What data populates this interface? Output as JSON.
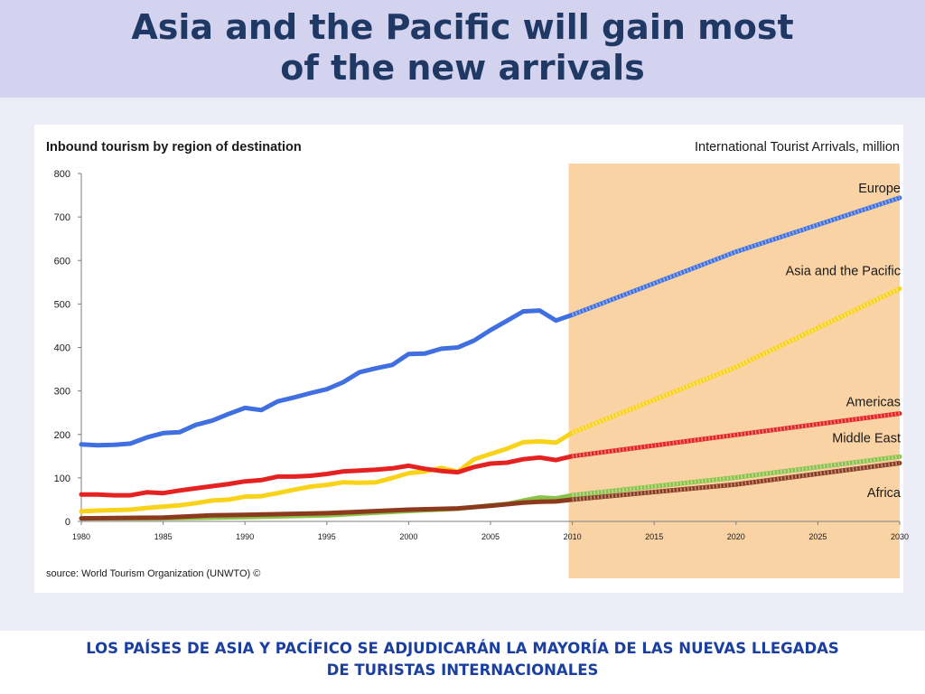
{
  "slide": {
    "title_line1": "Asia and the Pacific will gain most",
    "title_line2": "of the new arrivals",
    "subtitle_line1": "LOS PAÍSES DE ASIA Y PACÍFICO SE ADJUDICARÁN LA MAYORÍA DE LAS NUEVAS LLEGADAS",
    "subtitle_line2": "DE TURISTAS INTERNACIONALES"
  },
  "colors": {
    "header_bg": "#d3d3ef",
    "panel_bg": "#ececf6",
    "forecast_bg": "#fad3a5",
    "title": "#1f3864",
    "subtitle": "#1a3fa0"
  },
  "chart_data": {
    "type": "line",
    "title": "Inbound tourism by region of destination",
    "units_label": "International Tourist Arrivals, million",
    "source": "source: World Tourism Organization (UNWTO) ©",
    "xlim": [
      1980,
      2030
    ],
    "ylim": [
      0,
      800
    ],
    "x_ticks": [
      1980,
      1985,
      1990,
      1995,
      2000,
      2005,
      2010,
      2015,
      2020,
      2025,
      2030
    ],
    "y_ticks": [
      0,
      100,
      200,
      300,
      400,
      500,
      600,
      700,
      800
    ],
    "grid": false,
    "forecast_range": [
      2010,
      2030
    ],
    "series": [
      {
        "name": "Europe",
        "color": "#3f6fe0",
        "actual": [
          [
            1980,
            177
          ],
          [
            1981,
            175
          ],
          [
            1982,
            176
          ],
          [
            1983,
            179
          ],
          [
            1984,
            193
          ],
          [
            1985,
            203
          ],
          [
            1986,
            205
          ],
          [
            1987,
            222
          ],
          [
            1988,
            232
          ],
          [
            1989,
            247
          ],
          [
            1990,
            261
          ],
          [
            1991,
            256
          ],
          [
            1992,
            276
          ],
          [
            1993,
            285
          ],
          [
            1994,
            295
          ],
          [
            1995,
            304
          ],
          [
            1996,
            320
          ],
          [
            1997,
            343
          ],
          [
            1998,
            352
          ],
          [
            1999,
            360
          ],
          [
            2000,
            385
          ],
          [
            2001,
            386
          ],
          [
            2002,
            397
          ],
          [
            2003,
            400
          ],
          [
            2004,
            416
          ],
          [
            2005,
            440
          ],
          [
            2006,
            461
          ],
          [
            2007,
            483
          ],
          [
            2008,
            485
          ],
          [
            2009,
            462
          ],
          [
            2010,
            475
          ]
        ],
        "forecast": [
          [
            2010,
            475
          ],
          [
            2020,
            620
          ],
          [
            2030,
            744
          ]
        ]
      },
      {
        "name": "Asia and the Pacific",
        "color": "#f9d21a",
        "actual": [
          [
            1980,
            23
          ],
          [
            1981,
            25
          ],
          [
            1982,
            26
          ],
          [
            1983,
            27
          ],
          [
            1984,
            31
          ],
          [
            1985,
            34
          ],
          [
            1986,
            37
          ],
          [
            1987,
            42
          ],
          [
            1988,
            48
          ],
          [
            1989,
            50
          ],
          [
            1990,
            57
          ],
          [
            1991,
            58
          ],
          [
            1992,
            65
          ],
          [
            1993,
            73
          ],
          [
            1994,
            80
          ],
          [
            1995,
            84
          ],
          [
            1996,
            90
          ],
          [
            1997,
            89
          ],
          [
            1998,
            90
          ],
          [
            1999,
            100
          ],
          [
            2000,
            111
          ],
          [
            2001,
            115
          ],
          [
            2002,
            123
          ],
          [
            2003,
            114
          ],
          [
            2004,
            143
          ],
          [
            2005,
            155
          ],
          [
            2006,
            167
          ],
          [
            2007,
            182
          ],
          [
            2008,
            184
          ],
          [
            2009,
            181
          ],
          [
            2010,
            204
          ]
        ],
        "forecast": [
          [
            2010,
            204
          ],
          [
            2020,
            355
          ],
          [
            2030,
            535
          ]
        ]
      },
      {
        "name": "Americas",
        "color": "#e42222",
        "actual": [
          [
            1980,
            62
          ],
          [
            1981,
            62
          ],
          [
            1982,
            60
          ],
          [
            1983,
            60
          ],
          [
            1984,
            67
          ],
          [
            1985,
            65
          ],
          [
            1986,
            71
          ],
          [
            1987,
            76
          ],
          [
            1988,
            81
          ],
          [
            1989,
            86
          ],
          [
            1990,
            92
          ],
          [
            1991,
            95
          ],
          [
            1992,
            103
          ],
          [
            1993,
            103
          ],
          [
            1994,
            105
          ],
          [
            1995,
            109
          ],
          [
            1996,
            115
          ],
          [
            1997,
            117
          ],
          [
            1998,
            119
          ],
          [
            1999,
            122
          ],
          [
            2000,
            128
          ],
          [
            2001,
            121
          ],
          [
            2002,
            116
          ],
          [
            2003,
            113
          ],
          [
            2004,
            125
          ],
          [
            2005,
            133
          ],
          [
            2006,
            135
          ],
          [
            2007,
            143
          ],
          [
            2008,
            147
          ],
          [
            2009,
            141
          ],
          [
            2010,
            150
          ]
        ],
        "forecast": [
          [
            2010,
            150
          ],
          [
            2020,
            199
          ],
          [
            2030,
            248
          ]
        ]
      },
      {
        "name": "Middle East",
        "color": "#8bc34a",
        "actual": [
          [
            1980,
            7
          ],
          [
            1985,
            7
          ],
          [
            1990,
            10
          ],
          [
            1995,
            14
          ],
          [
            2000,
            24
          ],
          [
            2003,
            29
          ],
          [
            2005,
            37
          ],
          [
            2006,
            40
          ],
          [
            2007,
            48
          ],
          [
            2008,
            55
          ],
          [
            2009,
            53
          ],
          [
            2010,
            60
          ]
        ],
        "forecast": [
          [
            2010,
            60
          ],
          [
            2020,
            101
          ],
          [
            2030,
            149
          ]
        ]
      },
      {
        "name": "Africa",
        "color": "#8b3a1e",
        "actual": [
          [
            1980,
            7
          ],
          [
            1985,
            9
          ],
          [
            1988,
            14
          ],
          [
            1990,
            15
          ],
          [
            1995,
            19
          ],
          [
            1997,
            22
          ],
          [
            2000,
            27
          ],
          [
            2003,
            30
          ],
          [
            2005,
            36
          ],
          [
            2007,
            43
          ],
          [
            2008,
            45
          ],
          [
            2009,
            46
          ],
          [
            2010,
            50
          ]
        ],
        "forecast": [
          [
            2010,
            50
          ],
          [
            2020,
            85
          ],
          [
            2030,
            134
          ]
        ]
      }
    ]
  }
}
